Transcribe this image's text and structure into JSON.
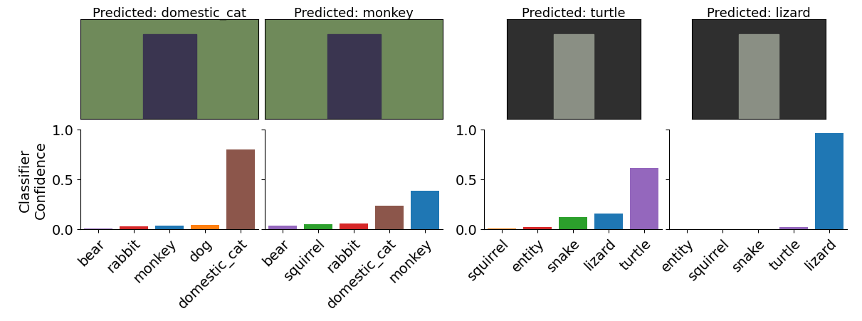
{
  "chart_data": [
    {
      "type": "bar",
      "title": "Predicted: domestic_cat",
      "categories": [
        "bear",
        "rabbit",
        "monkey",
        "dog",
        "domestic_cat"
      ],
      "values": [
        0.01,
        0.03,
        0.035,
        0.045,
        0.8
      ],
      "colors": [
        "#9467bd",
        "#d62728",
        "#1f77b4",
        "#ff7f0e",
        "#8c564b"
      ],
      "ylabel": "Classifier\nConfidence",
      "ylim": [
        0,
        1
      ],
      "yticks": [
        {
          "value": 0,
          "label": "0.0"
        },
        {
          "value": 0.5,
          "label": "0.5"
        },
        {
          "value": 1,
          "label": "1.0"
        }
      ]
    },
    {
      "type": "bar",
      "title": "Predicted: monkey",
      "categories": [
        "bear",
        "squirrel",
        "rabbit",
        "domestic_cat",
        "monkey"
      ],
      "values": [
        0.035,
        0.05,
        0.06,
        0.235,
        0.385
      ],
      "colors": [
        "#9467bd",
        "#2ca02c",
        "#d62728",
        "#8c564b",
        "#1f77b4"
      ],
      "ylim": [
        0,
        1
      ],
      "yticks": [
        0,
        0.5,
        1
      ],
      "tick_labels": "x"
    },
    {
      "type": "bar",
      "title": "Predicted: turtle",
      "categories": [
        "squirrel",
        "entity",
        "snake",
        "lizard",
        "turtle"
      ],
      "values": [
        0.01,
        0.025,
        0.12,
        0.155,
        0.615
      ],
      "colors": [
        "#ff7f0e",
        "#d62728",
        "#2ca02c",
        "#1f77b4",
        "#9467bd"
      ],
      "ylim": [
        0,
        1
      ],
      "yticks": [
        {
          "value": 0,
          "label": "0.0"
        },
        {
          "value": 0.5,
          "label": "0.5"
        },
        {
          "value": 1,
          "label": "1.0"
        }
      ]
    },
    {
      "type": "bar",
      "title": "Predicted: lizard",
      "categories": [
        "entity",
        "squirrel",
        "snake",
        "turtle",
        "lizard"
      ],
      "values": [
        0.002,
        0.002,
        0.003,
        0.025,
        0.965
      ],
      "colors": [
        "#d62728",
        "#ff7f0e",
        "#2ca02c",
        "#9467bd",
        "#1f77b4"
      ],
      "ylim": [
        0,
        1
      ],
      "yticks": [
        0,
        0.5,
        1
      ],
      "tick_labels": "x"
    }
  ]
}
